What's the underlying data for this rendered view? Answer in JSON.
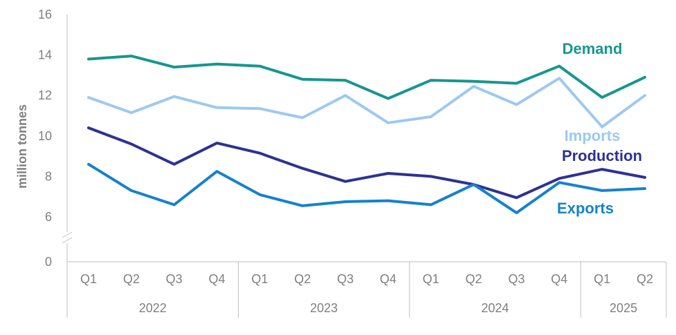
{
  "chart_data": {
    "type": "line",
    "ylabel": "million tonnes",
    "ylim": [
      0,
      16
    ],
    "y_axis_break": [
      0,
      5.3
    ],
    "y_ticks": [
      0,
      6,
      8,
      10,
      12,
      14,
      16
    ],
    "categories": [
      "Q1",
      "Q2",
      "Q3",
      "Q4",
      "Q1",
      "Q2",
      "Q3",
      "Q4",
      "Q1",
      "Q2",
      "Q3",
      "Q4",
      "Q1",
      "Q2"
    ],
    "year_groups": [
      {
        "label": "2022",
        "count": 4
      },
      {
        "label": "2023",
        "count": 4
      },
      {
        "label": "2024",
        "count": 4
      },
      {
        "label": "2025",
        "count": 2
      }
    ],
    "series": [
      {
        "name": "Demand",
        "color": "#17968F",
        "values": [
          13.8,
          13.95,
          13.4,
          13.55,
          13.45,
          12.8,
          12.75,
          11.85,
          12.75,
          12.7,
          12.6,
          13.45,
          11.9,
          12.9
        ]
      },
      {
        "name": "Imports",
        "color": "#9DC9F2",
        "values": [
          11.9,
          11.15,
          11.95,
          11.4,
          11.35,
          10.9,
          12.0,
          10.65,
          10.95,
          12.45,
          11.55,
          12.85,
          10.45,
          12.0
        ]
      },
      {
        "name": "Production",
        "color": "#2E3192",
        "values": [
          10.4,
          9.6,
          8.6,
          9.65,
          9.15,
          8.4,
          7.75,
          8.15,
          8.0,
          7.6,
          6.95,
          7.9,
          8.35,
          7.95
        ]
      },
      {
        "name": "Exports",
        "color": "#1581CF",
        "values": [
          8.6,
          7.3,
          6.6,
          8.25,
          7.1,
          6.55,
          6.75,
          6.8,
          6.6,
          7.6,
          6.2,
          7.7,
          7.3,
          7.4
        ]
      }
    ],
    "legend": [
      {
        "name": "Demand",
        "color": "#17968F"
      },
      {
        "name": "Imports",
        "color": "#9DC9F2"
      },
      {
        "name": "Production",
        "color": "#2E3192"
      },
      {
        "name": "Exports",
        "color": "#1581CF"
      }
    ]
  }
}
